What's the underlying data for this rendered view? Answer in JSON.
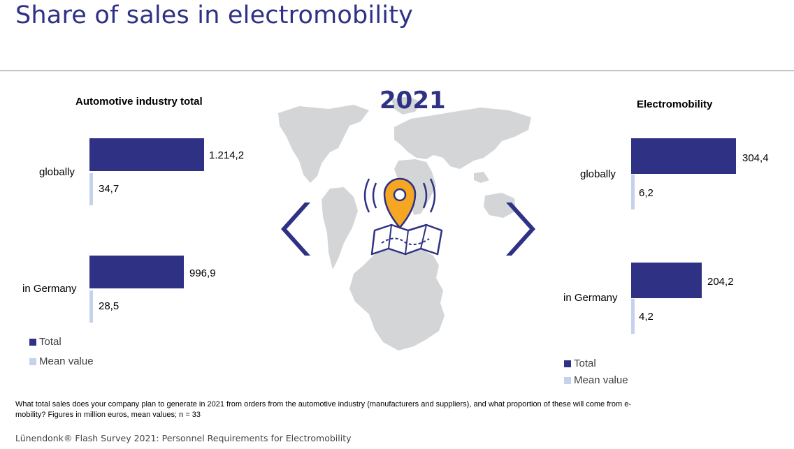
{
  "page": {
    "title": "Share of sales in electromobility",
    "year": "2021",
    "footnote": "What total sales does your company plan to generate in 2021 from orders from the automotive industry (manufacturers and suppliers), and what proportion of these will come from e-mobility? Figures in million euros, mean values; n = 33",
    "source": "Lünendonk® Flash Survey 2021: Personnel Requirements for Electromobility"
  },
  "colors": {
    "total": "#2e3184",
    "mean": "#c5d2ee",
    "accent": "#f5a623"
  },
  "icons": [
    "world-map-icon",
    "germany-map-icon",
    "location-pin-icon",
    "chevron-left-icon",
    "chevron-right-icon"
  ],
  "chart_data": [
    {
      "type": "bar",
      "orientation": "horizontal",
      "title": "Automotive industry total",
      "categories": [
        "globally",
        "in Germany"
      ],
      "series": [
        {
          "name": "Total",
          "values": [
            1214.2,
            996.9
          ],
          "labels": [
            "1.214,2",
            "996,9"
          ]
        },
        {
          "name": "Mean value",
          "values": [
            34.7,
            28.5
          ],
          "labels": [
            "34,7",
            "28,5"
          ]
        }
      ],
      "legend": [
        "Total",
        "Mean value"
      ]
    },
    {
      "type": "bar",
      "orientation": "horizontal",
      "title": "Electromobility",
      "categories": [
        "globally",
        "in Germany"
      ],
      "series": [
        {
          "name": "Total",
          "values": [
            304.4,
            204.2
          ],
          "labels": [
            "304,4",
            "204,2"
          ]
        },
        {
          "name": "Mean value",
          "values": [
            6.2,
            4.2
          ],
          "labels": [
            "6,2",
            "4,2"
          ]
        }
      ],
      "legend": [
        "Total",
        "Mean value"
      ]
    }
  ]
}
